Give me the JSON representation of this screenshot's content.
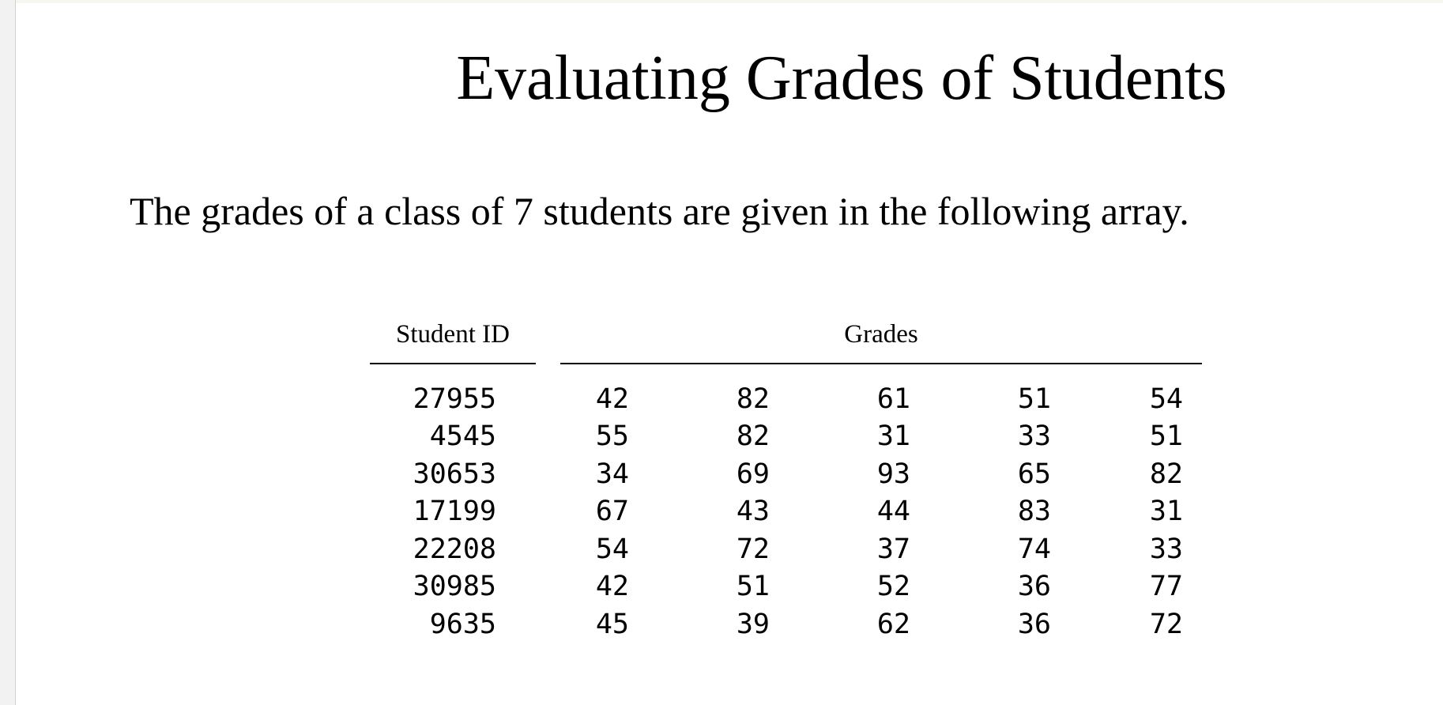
{
  "title": "Evaluating Grades of Students",
  "intro": "The grades of a class of 7 students are given in the following array.",
  "table": {
    "id_header": "Student ID",
    "grades_header": "Grades",
    "rows": [
      {
        "id": "27955",
        "grades": [
          "42",
          "82",
          "61",
          "51",
          "54"
        ]
      },
      {
        "id": "4545",
        "grades": [
          "55",
          "82",
          "31",
          "33",
          "51"
        ]
      },
      {
        "id": "30653",
        "grades": [
          "34",
          "69",
          "93",
          "65",
          "82"
        ]
      },
      {
        "id": "17199",
        "grades": [
          "67",
          "43",
          "44",
          "83",
          "31"
        ]
      },
      {
        "id": "22208",
        "grades": [
          "54",
          "72",
          "37",
          "74",
          "33"
        ]
      },
      {
        "id": "30985",
        "grades": [
          "42",
          "51",
          "52",
          "36",
          "77"
        ]
      },
      {
        "id": "9635",
        "grades": [
          "45",
          "39",
          "62",
          "36",
          "72"
        ]
      }
    ]
  }
}
